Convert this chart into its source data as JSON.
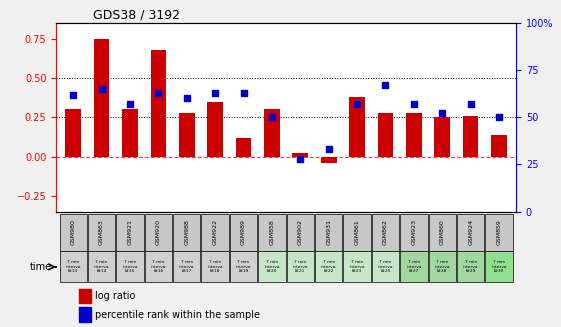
{
  "title": "GDS38 / 3192",
  "samples": [
    "GSM980",
    "GSM863",
    "GSM921",
    "GSM920",
    "GSM988",
    "GSM922",
    "GSM989",
    "GSM858",
    "GSM902",
    "GSM931",
    "GSM861",
    "GSM862",
    "GSM923",
    "GSM860",
    "GSM924",
    "GSM859"
  ],
  "time_labels": [
    "7 min\ninterva\nl#13",
    "7 min\ninterva\nl#14",
    "7 min\ninterva\nl#15",
    "7 min\ninterva\nl#16",
    "7 min\ninterva\nl#17",
    "7 min\ninterva\nl#18",
    "7 min\ninterva\nl#19",
    "7 min\ninterva\nl#20",
    "7 min\ninterva\nl#21",
    "7 min\ninterva\nl#22",
    "7 min\ninterva\nl#23",
    "7 min\ninterva\nl#25",
    "7 min\ninterva\nl#27",
    "7 min\ninterva\nl#28",
    "7 min\ninterva\nl#29",
    "7 min\ninterva\nl#30"
  ],
  "log_ratio": [
    0.3,
    0.75,
    0.3,
    0.68,
    0.28,
    0.35,
    0.12,
    0.3,
    0.02,
    -0.04,
    0.38,
    0.28,
    0.28,
    0.25,
    0.26,
    0.14
  ],
  "percentile": [
    0.62,
    0.65,
    0.57,
    0.63,
    0.6,
    0.63,
    0.63,
    0.5,
    0.28,
    0.33,
    0.57,
    0.67,
    0.57,
    0.52,
    0.57,
    0.5
  ],
  "bar_color": "#cc0000",
  "dot_color": "#0000cc",
  "bg_color": "#f0f0f0",
  "plot_bg": "#ffffff",
  "ylim_left": [
    -0.35,
    0.85
  ],
  "ylim_right": [
    0,
    100
  ],
  "yticks_left": [
    -0.25,
    0,
    0.25,
    0.5,
    0.75
  ],
  "yticks_right": [
    0,
    25,
    50,
    75,
    100
  ],
  "hlines": [
    0.0,
    0.25,
    0.5
  ],
  "cell_colors": [
    "#d0d0d0",
    "#d0d0d0",
    "#d0d0d0",
    "#d0d0d0",
    "#d0d0d0",
    "#d0d0d0",
    "#d0d0d0",
    "#c8e6c8",
    "#c8e6c8",
    "#c8e6c8",
    "#c8e6c8",
    "#c8e6c8",
    "#a0d8a0",
    "#a0d8a0",
    "#a0d8a0",
    "#90e090"
  ],
  "legend_log_ratio": "log ratio",
  "legend_percentile": "percentile rank within the sample",
  "time_label": "time"
}
